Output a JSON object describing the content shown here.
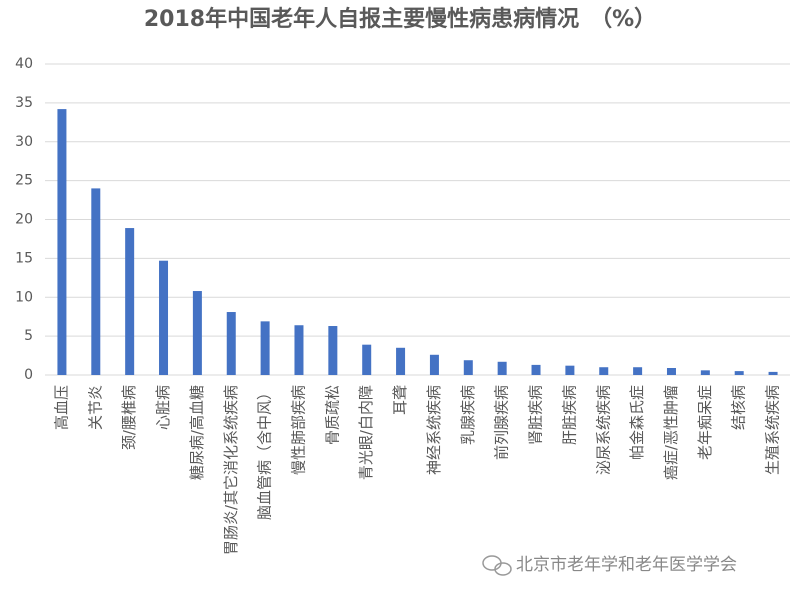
{
  "chart_data": {
    "type": "bar",
    "title": "2018年中国老年人自报主要慢性病患病情况　（%）",
    "categories": [
      "高血压",
      "关节炎",
      "颈/腰椎病",
      "心脏病",
      "糖尿病/高血糖",
      "胃肠炎/其它消化系统疾病",
      "脑血管病（含中风）",
      "慢性肺部疾病",
      "骨质疏松",
      "青光眼/白内障",
      "耳聋",
      "神经系统疾病",
      "乳腺疾病",
      "前列腺疾病",
      "肾脏疾病",
      "肝脏疾病",
      "泌尿系统疾病",
      "帕金森氏症",
      "癌症/恶性肿瘤",
      "老年痴呆症",
      "结核病",
      "生殖系统疾病"
    ],
    "values": [
      34.2,
      24.0,
      18.9,
      14.7,
      10.8,
      8.1,
      6.9,
      6.4,
      6.3,
      3.9,
      3.5,
      2.6,
      1.9,
      1.7,
      1.3,
      1.2,
      1.0,
      1.0,
      0.9,
      0.6,
      0.5,
      0.4
    ],
    "color": "#4472c4",
    "ylim": [
      0,
      40
    ],
    "yticks": [
      0,
      5,
      10,
      15,
      20,
      25,
      30,
      35,
      40
    ],
    "grid": true,
    "watermark": "北京市老年学和老年医学学会"
  }
}
